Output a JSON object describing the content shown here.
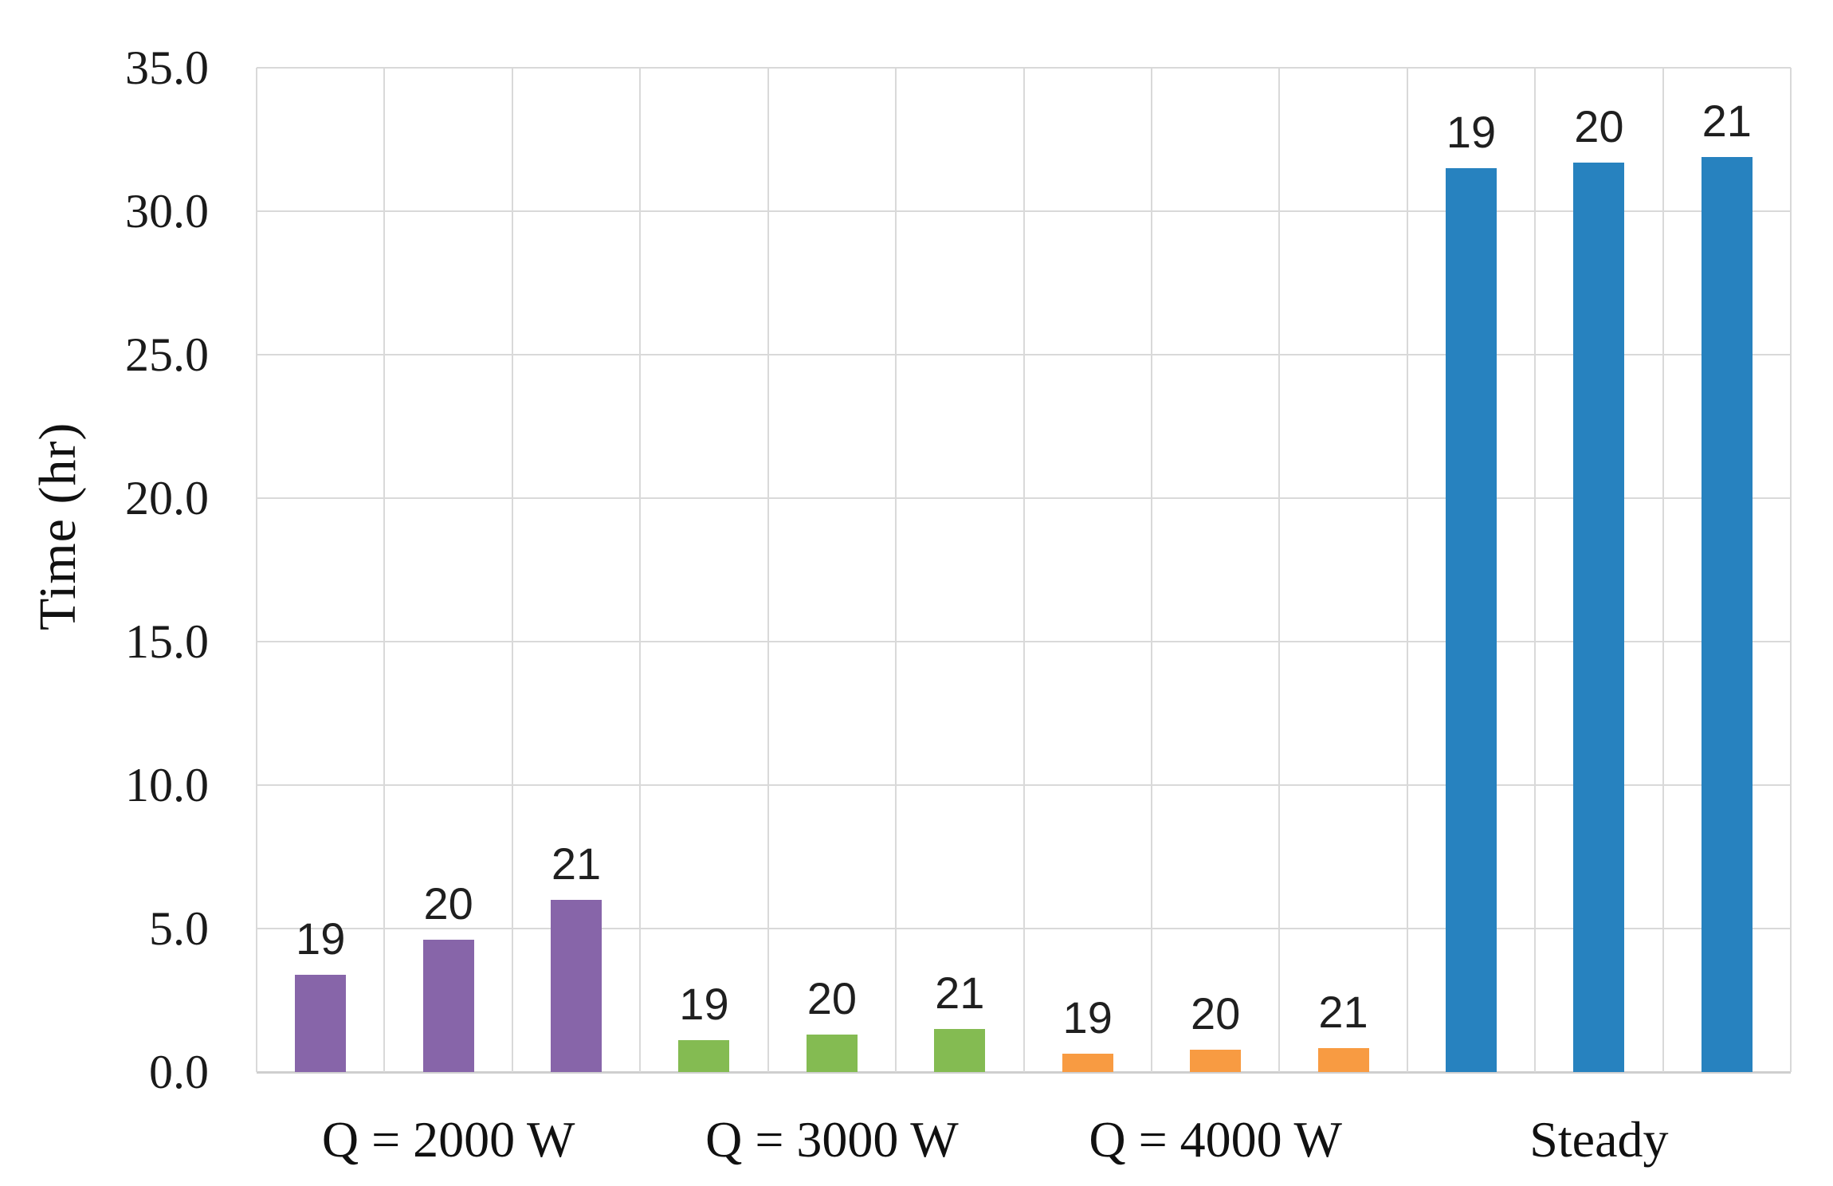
{
  "chart_data": {
    "type": "bar",
    "title": "",
    "xlabel": "",
    "ylabel": "Time (hr)",
    "ylim": [
      0,
      35
    ],
    "ytick_step": 5,
    "ytick_labels": [
      "0.0",
      "5.0",
      "10.0",
      "15.0",
      "20.0",
      "25.0",
      "30.0",
      "35.0"
    ],
    "grid": true,
    "legend": "none",
    "bar_label_series": [
      "19",
      "20",
      "21"
    ],
    "groups": [
      {
        "label": "Q = 2000 W",
        "color": "#8765A9",
        "bars": [
          {
            "label": "19",
            "value": 3.4
          },
          {
            "label": "20",
            "value": 4.6
          },
          {
            "label": "21",
            "value": 6.0
          }
        ]
      },
      {
        "label": "Q = 3000 W",
        "color": "#84BB52",
        "bars": [
          {
            "label": "19",
            "value": 1.1
          },
          {
            "label": "20",
            "value": 1.3
          },
          {
            "label": "21",
            "value": 1.5
          }
        ]
      },
      {
        "label": "Q = 4000 W",
        "color": "#F89B42",
        "bars": [
          {
            "label": "19",
            "value": 0.65
          },
          {
            "label": "20",
            "value": 0.78
          },
          {
            "label": "21",
            "value": 0.82
          }
        ]
      },
      {
        "label": "Steady",
        "color": "#2782BF",
        "bars": [
          {
            "label": "19",
            "value": 31.5
          },
          {
            "label": "20",
            "value": 31.7
          },
          {
            "label": "21",
            "value": 31.9
          }
        ]
      }
    ],
    "colors": {
      "gridline": "#d9d9d9",
      "text": "#1a1a1a"
    }
  }
}
